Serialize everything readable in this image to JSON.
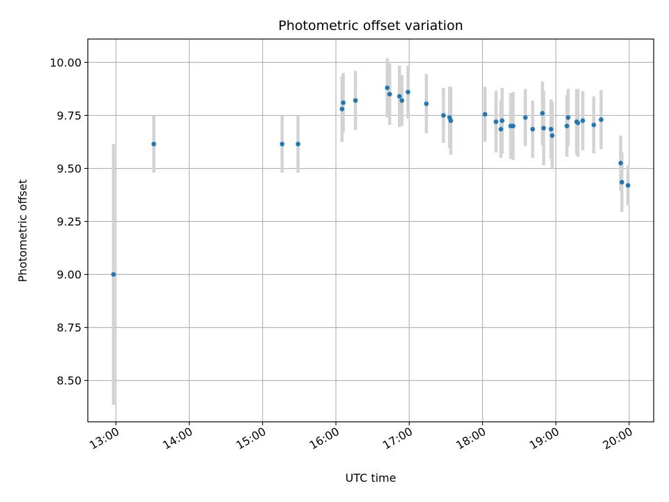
{
  "chart_data": {
    "type": "scatter",
    "title": "Photometric offset variation",
    "xlabel": "UTC time",
    "ylabel": "Photometric offset",
    "x_unit": "hours UTC",
    "xlim": [
      "12:37",
      "20:20"
    ],
    "ylim": [
      8.305,
      10.11
    ],
    "grid": true,
    "x_ticks": [
      "13:00",
      "14:00",
      "15:00",
      "16:00",
      "17:00",
      "18:00",
      "19:00",
      "20:00"
    ],
    "y_ticks": [
      "8.50",
      "8.75",
      "9.00",
      "9.25",
      "9.50",
      "9.75",
      "10.00"
    ],
    "point_color": "#1f77b4",
    "errorbar_color": "#d3d3d3",
    "points": [
      {
        "x": "12:58",
        "y": 9.0,
        "err": 0.615
      },
      {
        "x": "13:31",
        "y": 9.615,
        "err": 0.135
      },
      {
        "x": "15:16",
        "y": 9.615,
        "err": 0.135
      },
      {
        "x": "15:29",
        "y": 9.615,
        "err": 0.135
      },
      {
        "x": "16:05",
        "y": 9.78,
        "err": 0.155
      },
      {
        "x": "16:06",
        "y": 9.81,
        "err": 0.14
      },
      {
        "x": "16:16",
        "y": 9.82,
        "err": 0.14
      },
      {
        "x": "16:42",
        "y": 9.88,
        "err": 0.14
      },
      {
        "x": "16:44",
        "y": 9.85,
        "err": 0.145
      },
      {
        "x": "16:52",
        "y": 9.84,
        "err": 0.145
      },
      {
        "x": "16:54",
        "y": 9.82,
        "err": 0.12
      },
      {
        "x": "16:59",
        "y": 9.86,
        "err": 0.125
      },
      {
        "x": "17:14",
        "y": 9.805,
        "err": 0.14
      },
      {
        "x": "17:28",
        "y": 9.75,
        "err": 0.13
      },
      {
        "x": "17:33",
        "y": 9.74,
        "err": 0.145
      },
      {
        "x": "17:34",
        "y": 9.725,
        "err": 0.16
      },
      {
        "x": "18:02",
        "y": 9.755,
        "err": 0.13
      },
      {
        "x": "18:11",
        "y": 9.72,
        "err": 0.145
      },
      {
        "x": "18:15",
        "y": 9.685,
        "err": 0.135
      },
      {
        "x": "18:16",
        "y": 9.725,
        "err": 0.155
      },
      {
        "x": "18:23",
        "y": 9.7,
        "err": 0.155
      },
      {
        "x": "18:25",
        "y": 9.7,
        "err": 0.16
      },
      {
        "x": "18:35",
        "y": 9.74,
        "err": 0.135
      },
      {
        "x": "18:41",
        "y": 9.685,
        "err": 0.135
      },
      {
        "x": "18:49",
        "y": 9.76,
        "err": 0.15
      },
      {
        "x": "18:50",
        "y": 9.69,
        "err": 0.175
      },
      {
        "x": "18:56",
        "y": 9.685,
        "err": 0.14
      },
      {
        "x": "18:57",
        "y": 9.655,
        "err": 0.16
      },
      {
        "x": "19:09",
        "y": 9.7,
        "err": 0.145
      },
      {
        "x": "19:10",
        "y": 9.74,
        "err": 0.135
      },
      {
        "x": "19:17",
        "y": 9.72,
        "err": 0.155
      },
      {
        "x": "19:18",
        "y": 9.715,
        "err": 0.16
      },
      {
        "x": "19:22",
        "y": 9.725,
        "err": 0.14
      },
      {
        "x": "19:31",
        "y": 9.705,
        "err": 0.135
      },
      {
        "x": "19:37",
        "y": 9.73,
        "err": 0.14
      },
      {
        "x": "19:53",
        "y": 9.525,
        "err": 0.13
      },
      {
        "x": "19:54",
        "y": 9.435,
        "err": 0.14
      },
      {
        "x": "19:59",
        "y": 9.42,
        "err": 0.095
      }
    ]
  }
}
